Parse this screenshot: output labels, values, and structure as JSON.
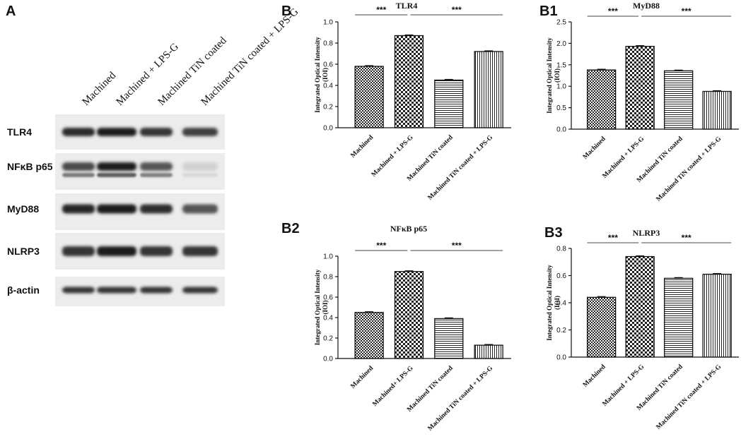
{
  "blot": {
    "label": "A",
    "lanes": [
      "Machined",
      "Machined + LPS-G",
      "Machined TiN coated",
      "Machined TiN coated + LPS-G"
    ],
    "proteins": [
      {
        "name": "TLR4",
        "intensity": [
          0.9,
          0.95,
          0.85,
          0.8
        ]
      },
      {
        "name": "NFκB p65",
        "intensity": [
          0.75,
          0.95,
          0.7,
          0.12
        ]
      },
      {
        "name": "MyD88",
        "intensity": [
          0.92,
          0.95,
          0.88,
          0.7
        ]
      },
      {
        "name": "NLRP3",
        "intensity": [
          0.85,
          0.95,
          0.85,
          0.85
        ]
      },
      {
        "name": "β-actin",
        "intensity": [
          0.85,
          0.85,
          0.85,
          0.85
        ]
      }
    ]
  },
  "chart_data": [
    {
      "label": "B",
      "type": "bar",
      "title": "TLR4",
      "ylabel": "Integrated  Optical Intensity\n(IOI)",
      "categories": [
        "Machined",
        "Machined + LPS-G",
        "Machined TiN coated",
        "Machined TiN coated + LPS-G"
      ],
      "values": [
        0.58,
        0.87,
        0.45,
        0.72
      ],
      "ylim": [
        0,
        1.0
      ],
      "yticks": [
        "0.0",
        "0.2",
        "0.4",
        "0.6",
        "0.8",
        "1.0"
      ],
      "significance": [
        {
          "from": 0,
          "to": 1,
          "text": "***"
        },
        {
          "from": 1,
          "to": 3,
          "text": "***"
        }
      ]
    },
    {
      "label": "B1",
      "type": "bar",
      "title": "MyD88",
      "ylabel": "Integrated  Optical Intensity\n(IOI)",
      "categories": [
        "Machined",
        "Machined + LPS-G",
        "Machined TiN coated",
        "Machined TiN coated + LPS-G"
      ],
      "values": [
        1.38,
        1.93,
        1.36,
        0.88
      ],
      "ylim": [
        0,
        2.5
      ],
      "yticks": [
        "0.0",
        "0.5",
        "1.0",
        "1.5",
        "2.0",
        "2.5"
      ],
      "significance": [
        {
          "from": 0,
          "to": 1,
          "text": "***"
        },
        {
          "from": 1,
          "to": 3,
          "text": "***"
        }
      ]
    },
    {
      "label": "B2",
      "type": "bar",
      "title": "NFκB p65",
      "ylabel": "Integrated  Optical Intensity\n(IOI)",
      "categories": [
        "Machined",
        "Machined+ LPS-G",
        "Machined TiN coated",
        "Machined TiN coated + LPS-G"
      ],
      "values": [
        0.45,
        0.85,
        0.39,
        0.13
      ],
      "ylim": [
        0,
        1.0
      ],
      "yticks": [
        "0.0",
        "0.2",
        "0.4",
        "0.6",
        "0.8",
        "1.0"
      ],
      "significance": [
        {
          "from": 0,
          "to": 1,
          "text": "***"
        },
        {
          "from": 1,
          "to": 3,
          "text": "***"
        }
      ]
    },
    {
      "label": "B3",
      "type": "bar",
      "title": "NLRP3",
      "ylabel": "Integrated  Optical Intensity\n(IOI)",
      "categories": [
        "Machined",
        "Machined + LPS-G",
        "Machined TiN coated",
        "Machined TiN coated + LPS-G"
      ],
      "values": [
        0.44,
        0.74,
        0.58,
        0.61
      ],
      "ylim": [
        0,
        0.8
      ],
      "yticks": [
        "0.0",
        "0.2",
        "0.4",
        "0.6",
        "0.8"
      ],
      "significance": [
        {
          "from": 0,
          "to": 1,
          "text": "***"
        },
        {
          "from": 1,
          "to": 3,
          "text": "***"
        }
      ]
    }
  ],
  "bar_patterns": [
    "pattern-dense-check",
    "pattern-large-check",
    "pattern-horizontal-stripes",
    "pattern-vertical-stripes"
  ]
}
